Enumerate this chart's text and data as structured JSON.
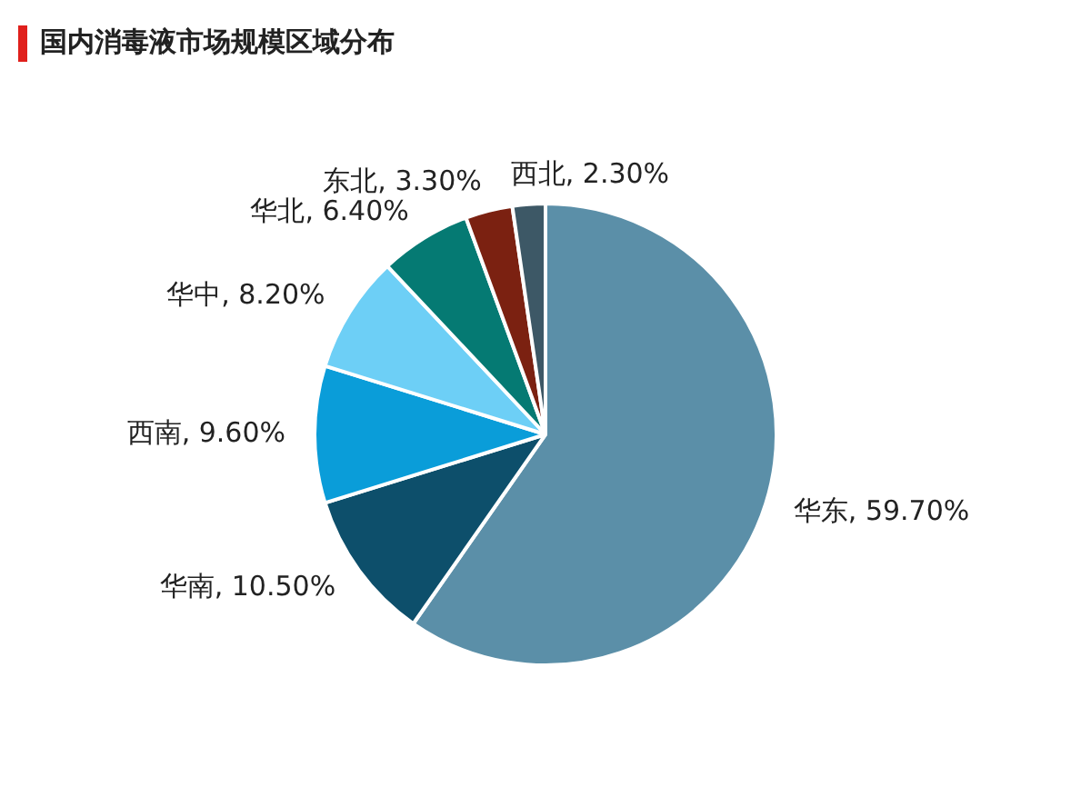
{
  "chart_data": {
    "type": "pie",
    "title": "国内消毒液市场规模区域分布",
    "categories": [
      "华东",
      "华南",
      "西南",
      "华中",
      "华北",
      "东北",
      "西北"
    ],
    "values": [
      59.7,
      10.5,
      9.6,
      8.2,
      6.4,
      3.3,
      2.3
    ],
    "colors": [
      "#5b8fa8",
      "#0d4f6b",
      "#0a9dd9",
      "#6dcff6",
      "#057a73",
      "#7b2111",
      "#3d5866"
    ],
    "value_labels": [
      "59.70%",
      "10.50%",
      "9.60%",
      "8.20%",
      "6.40%",
      "3.30%",
      "2.30%"
    ],
    "legend": false
  }
}
